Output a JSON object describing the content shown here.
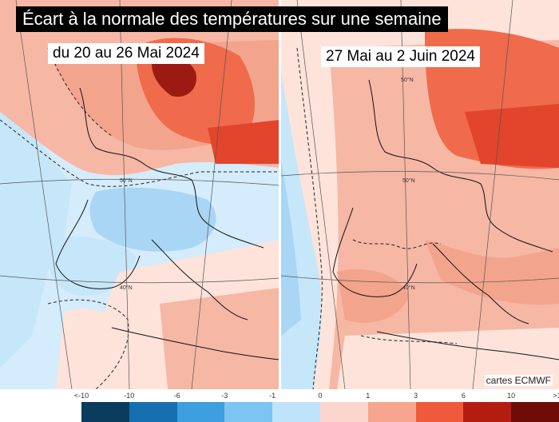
{
  "title": "Écart à la normale des températures sur une semaine",
  "panels": [
    {
      "period": "du 20 au 26 Mai 2024"
    },
    {
      "period": "27 Mai au 2 Juin 2024"
    }
  ],
  "credit": "cartes ECMWF",
  "grid_labels": [
    "50°N",
    "40°N"
  ],
  "legend": {
    "ticks": [
      "<-10",
      "-10",
      "-6",
      "-3",
      "-1",
      "0",
      "1",
      "3",
      "6",
      "10",
      ">10"
    ],
    "colors": [
      "#0b3c5d",
      "#1670b0",
      "#3d9ee0",
      "#7cc4f2",
      "#bfe3fa",
      "#ffffff",
      "#fcd6cc",
      "#f7a58f",
      "#ef5a3c",
      "#b31d10",
      "#6e0b07"
    ]
  },
  "palette": {
    "warm_light": "#fde3da",
    "warm_mid": "#f6b7a5",
    "warm_strong": "#ef6b4b",
    "warm_hot": "#e2452c",
    "warm_extreme": "#9c1a12",
    "cool_light": "#d4ecfb",
    "cool_mid": "#a9d6f5"
  }
}
